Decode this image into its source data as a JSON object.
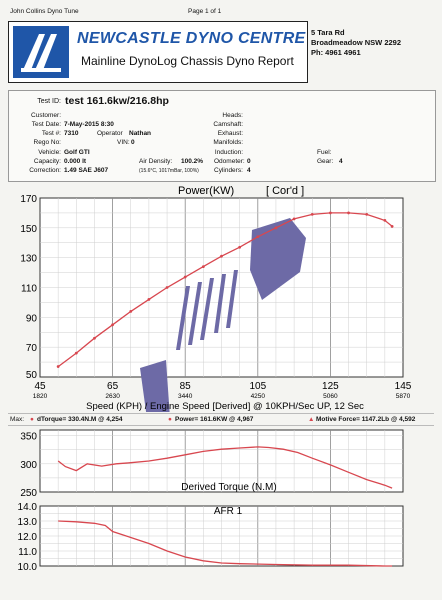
{
  "header": {
    "top_left": "John Collins Dyno Tune",
    "page": "Page 1 of 1",
    "company": "NEWCASTLE DYNO CENTRE",
    "subtitle": "Mainline DynoLog Chassis Dyno Report",
    "address1": "5 Tara Rd",
    "address2": "Broadmeadow NSW 2292",
    "phone": "Ph: 4961 4961"
  },
  "info": {
    "test_id_label": "Test ID:",
    "test_id_value": "test  161.6kw/216.8hp",
    "customer_label": "Customer:",
    "test_date_label": "Test Date:",
    "test_date_value": "7-May-2015 8:30",
    "test_num_label": "Test #:",
    "test_num_value": "7310",
    "operator_label": "Operator",
    "operator_value": "Nathan",
    "rego_label": "Rego No:",
    "vin_label": "VIN:",
    "vin_value": "0",
    "vehicle_label": "Vehicle:",
    "vehicle_value": "Golf GTI",
    "capacity_label": "Capacity:",
    "capacity_value": "0.000 lt",
    "air_density_label": "Air Density:",
    "air_density_value": "100.2%",
    "correction_label": "Correction:",
    "correction_value": "1.49 SAE J607",
    "conditions": "(15.6°C, 1017mBar, 100%)",
    "heads_label": "Heads:",
    "camshaft_label": "Camshaft:",
    "exhaust_label": "Exhaust:",
    "manifolds_label": "Manifolds:",
    "induction_label": "Induction:",
    "odometer_label": "Odometer:",
    "odometer_value": "0",
    "cylinders_label": "Cylinders:",
    "cylinders_value": "4",
    "fuel_label": "Fuel:",
    "gear_label": "Gear:",
    "gear_value": "4"
  },
  "maxline": {
    "max_label": "Max:",
    "torque": "dTorque= 330.4N.M @ 4,254",
    "power": "Power= 161.6KW @ 4,967",
    "motive": "Motive Force= 1147.2Lb @ 4,592"
  },
  "colors": {
    "curve": "#d8474f",
    "logo_blue": "#1f56a8",
    "watermark": "#6d6aa6"
  },
  "chart_data": [
    {
      "type": "line",
      "title": "Power(KW)",
      "subtitle": "[ Cor'd ]",
      "xlabel": "Speed (KPH) / Engine Speed [Derived] @ 10KPH/Sec UP, 12 Sec",
      "xlim": [
        45,
        145
      ],
      "ylim": [
        50,
        170
      ],
      "x_ticks": [
        "45",
        "65",
        "85",
        "105",
        "125",
        "145"
      ],
      "rpm_ticks": [
        "1820",
        "2630",
        "3440",
        "4250",
        "5060",
        "5870"
      ],
      "y_ticks": [
        "70",
        "90",
        "110",
        "130",
        "150",
        "170"
      ],
      "y_tick_bottom": "50",
      "series": [
        {
          "x": [
            50,
            55,
            60,
            65,
            70,
            75,
            80,
            85,
            90,
            95,
            100,
            105,
            110,
            115,
            120,
            125,
            130,
            135,
            140,
            142
          ],
          "y": [
            57,
            66,
            76,
            85,
            94,
            102,
            110,
            117,
            124,
            131,
            137,
            144,
            150,
            156,
            159,
            160,
            160,
            159,
            155,
            151
          ]
        }
      ]
    },
    {
      "type": "line",
      "title": "Derived Torque (N.M)",
      "xlim": [
        45,
        145
      ],
      "ylim": [
        250,
        360
      ],
      "y_ticks": [
        "250",
        "300",
        "350"
      ],
      "series": [
        {
          "x": [
            50,
            52,
            55,
            58,
            62,
            66,
            70,
            75,
            80,
            85,
            90,
            95,
            100,
            105,
            108,
            112,
            116,
            120,
            125,
            130,
            135,
            140,
            142
          ],
          "y": [
            305,
            295,
            288,
            300,
            296,
            300,
            302,
            305,
            310,
            316,
            322,
            326,
            328,
            330,
            329,
            326,
            320,
            310,
            298,
            285,
            272,
            262,
            257
          ]
        }
      ]
    },
    {
      "type": "line",
      "title": "AFR 1",
      "xlim": [
        45,
        145
      ],
      "ylim": [
        10.0,
        14.0
      ],
      "y_ticks": [
        "10.0",
        "11.0",
        "12.0",
        "13.0",
        "14.0"
      ],
      "series": [
        {
          "x": [
            50,
            55,
            60,
            63,
            65,
            70,
            75,
            80,
            85,
            90,
            95,
            100,
            110,
            120,
            130,
            140,
            142
          ],
          "y": [
            13.0,
            12.95,
            12.85,
            12.7,
            12.3,
            11.9,
            11.5,
            11.0,
            10.6,
            10.35,
            10.2,
            10.15,
            10.1,
            10.05,
            10.05,
            10.0,
            10.0
          ]
        }
      ]
    }
  ]
}
